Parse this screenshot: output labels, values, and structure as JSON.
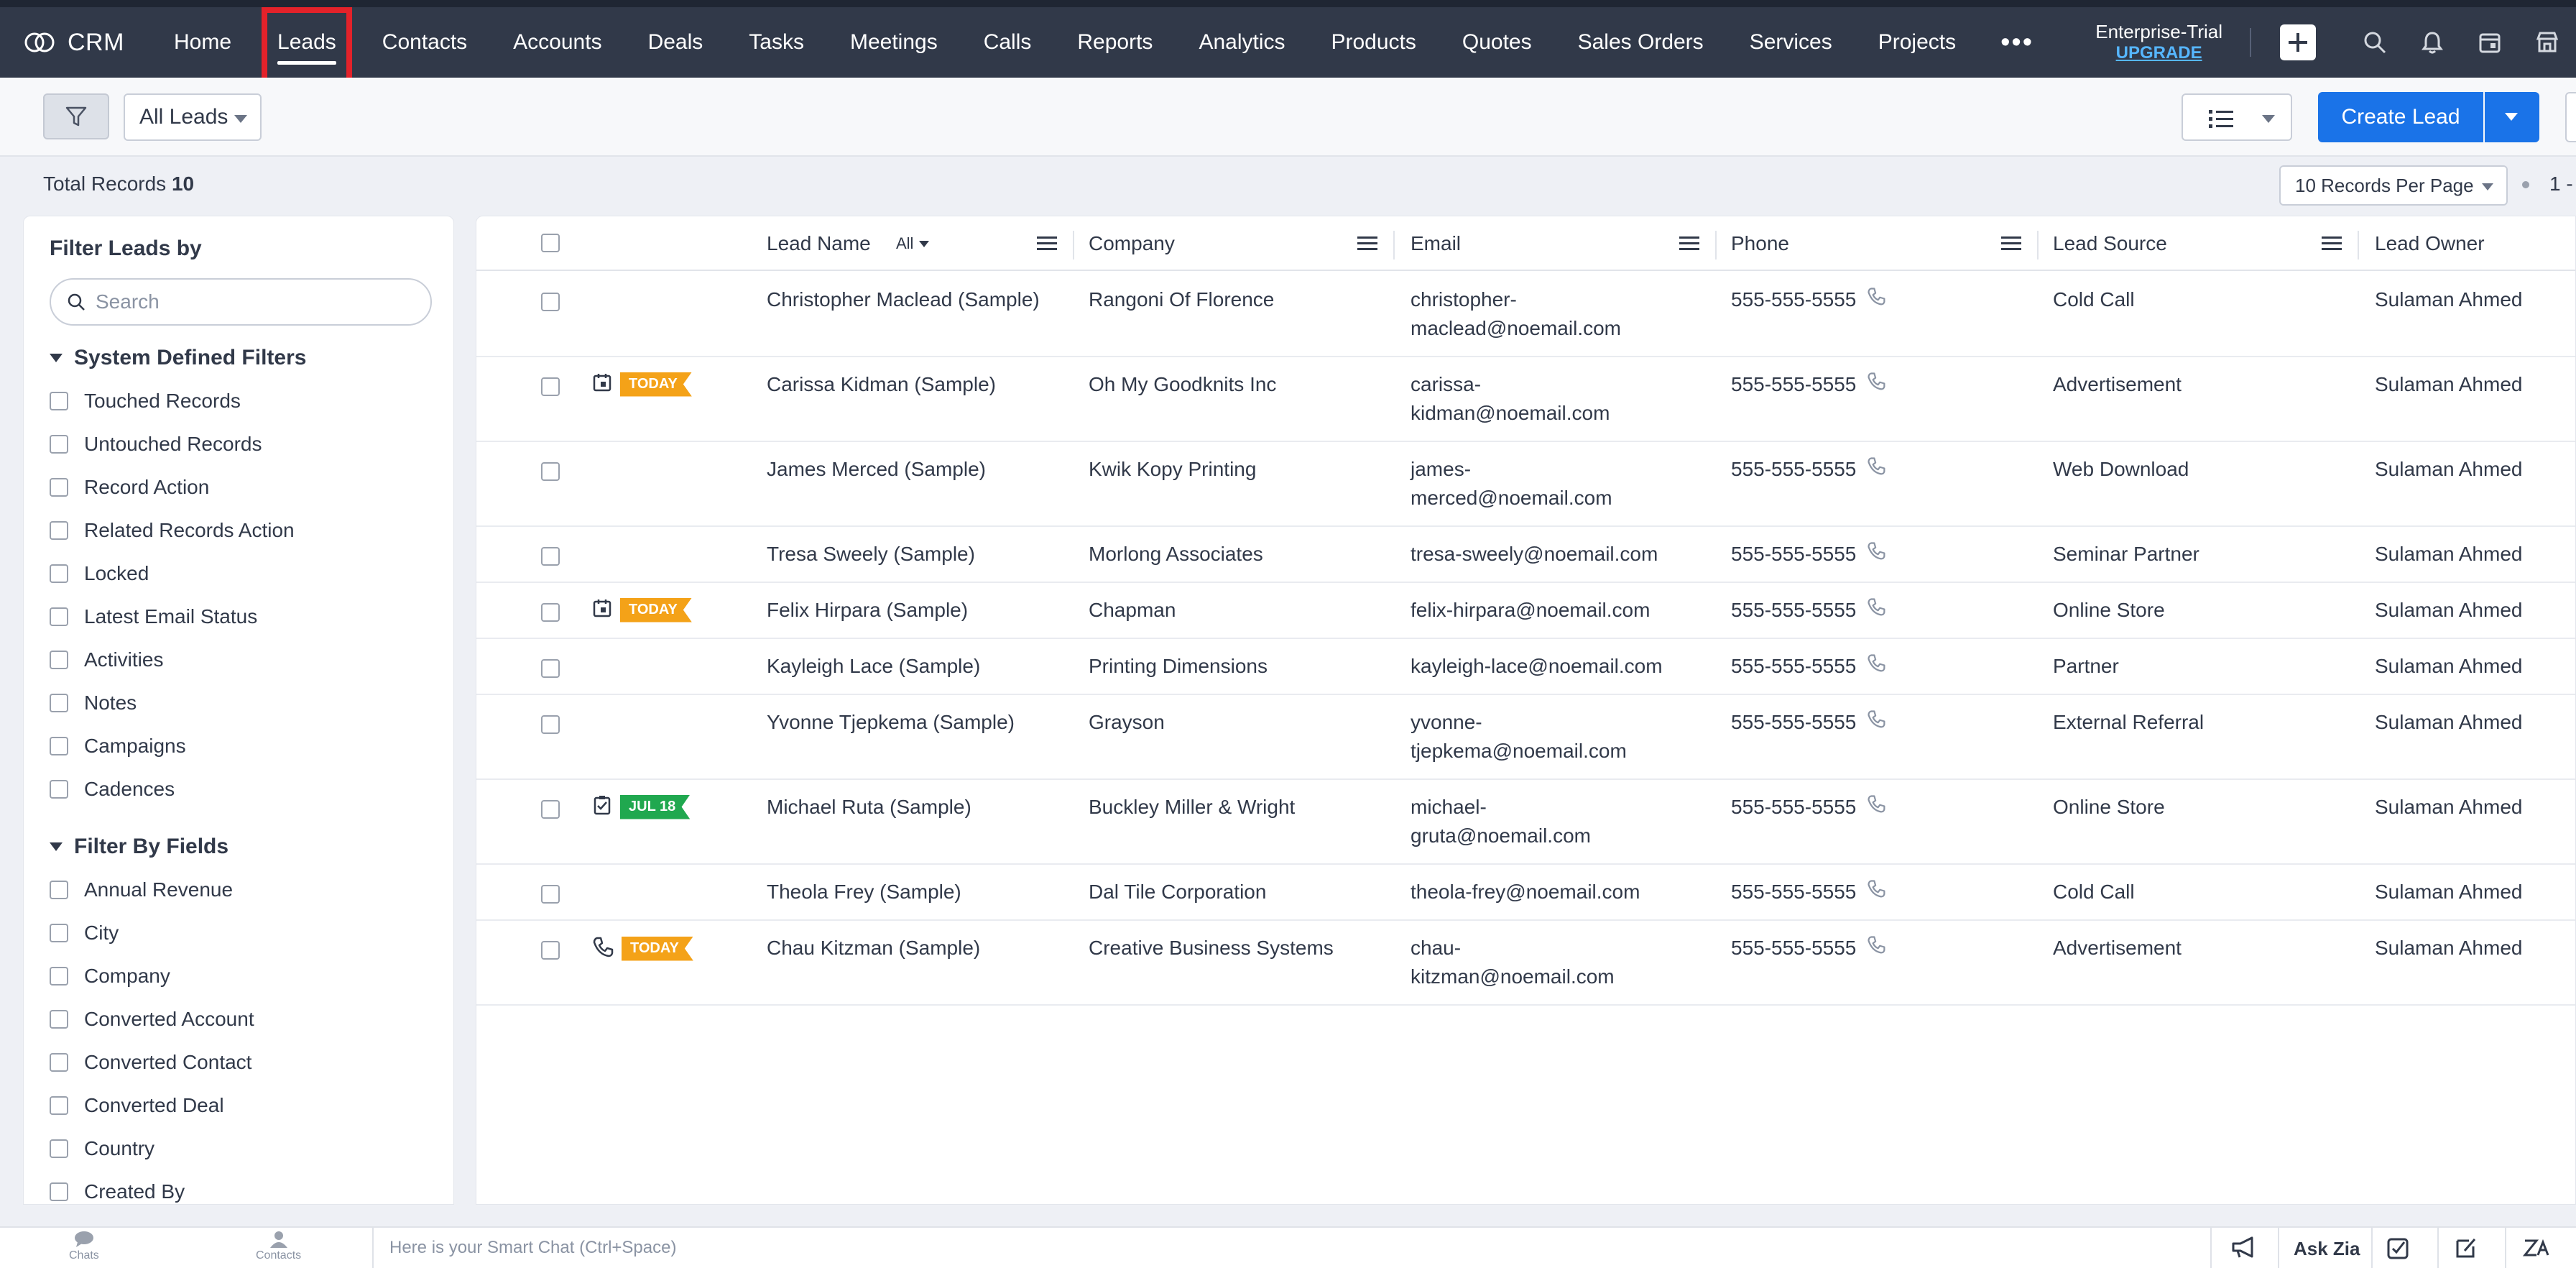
{
  "app": {
    "name": "CRM"
  },
  "nav": {
    "tabs": [
      {
        "label": "Home"
      },
      {
        "label": "Leads"
      },
      {
        "label": "Contacts"
      },
      {
        "label": "Accounts"
      },
      {
        "label": "Deals"
      },
      {
        "label": "Tasks"
      },
      {
        "label": "Meetings"
      },
      {
        "label": "Calls"
      },
      {
        "label": "Reports"
      },
      {
        "label": "Analytics"
      },
      {
        "label": "Products"
      },
      {
        "label": "Quotes"
      },
      {
        "label": "Sales Orders"
      },
      {
        "label": "Services"
      },
      {
        "label": "Projects"
      }
    ],
    "active_tab": "Leads",
    "more": "•••",
    "edition": "Enterprise-Trial",
    "upgrade": "UPGRADE",
    "icons": [
      "plus-icon",
      "search-icon",
      "bell-icon",
      "calendar-icon",
      "marketplace-icon"
    ]
  },
  "toolbar": {
    "view_label": "All Leads",
    "create_label": "Create Lead"
  },
  "records": {
    "label": "Total Records",
    "count": "10",
    "per_page": "10 Records Per Page",
    "pagination": "1 -"
  },
  "sidebar": {
    "title": "Filter Leads by",
    "search_placeholder": "Search",
    "system_title": "System Defined Filters",
    "system_filters": [
      "Touched Records",
      "Untouched Records",
      "Record Action",
      "Related Records Action",
      "Locked",
      "Latest Email Status",
      "Activities",
      "Notes",
      "Campaigns",
      "Cadences"
    ],
    "fields_title": "Filter By Fields",
    "field_filters": [
      "Annual Revenue",
      "City",
      "Company",
      "Converted Account",
      "Converted Contact",
      "Converted Deal",
      "Country",
      "Created By"
    ]
  },
  "table": {
    "columns": {
      "lead_name": "Lead Name",
      "lead_name_filter": "All",
      "company": "Company",
      "email": "Email",
      "phone": "Phone",
      "lead_source": "Lead Source",
      "lead_owner": "Lead Owner"
    },
    "rows": [
      {
        "name": "Christopher Maclead (Sample)",
        "company": "Rangoni Of Florence",
        "email1": "christopher-",
        "email2": "maclead@noemail.com",
        "phone": "555-555-5555",
        "source": "Cold Call",
        "owner": "Sulaman Ahmed",
        "activity": "",
        "tag": ""
      },
      {
        "name": "Carissa Kidman (Sample)",
        "company": "Oh My Goodknits Inc",
        "email1": "carissa-",
        "email2": "kidman@noemail.com",
        "phone": "555-555-5555",
        "source": "Advertisement",
        "owner": "Sulaman Ahmed",
        "activity": "calendar-icon",
        "tag": "TODAY"
      },
      {
        "name": "James Merced (Sample)",
        "company": "Kwik Kopy Printing",
        "email1": "james-",
        "email2": "merced@noemail.com",
        "phone": "555-555-5555",
        "source": "Web Download",
        "owner": "Sulaman Ahmed",
        "activity": "",
        "tag": ""
      },
      {
        "name": "Tresa Sweely (Sample)",
        "company": "Morlong Associates",
        "email1": "tresa-sweely@noemail.com",
        "email2": "",
        "phone": "555-555-5555",
        "source": "Seminar Partner",
        "owner": "Sulaman Ahmed",
        "activity": "",
        "tag": ""
      },
      {
        "name": "Felix Hirpara (Sample)",
        "company": "Chapman",
        "email1": "felix-hirpara@noemail.com",
        "email2": "",
        "phone": "555-555-5555",
        "source": "Online Store",
        "owner": "Sulaman Ahmed",
        "activity": "calendar-icon",
        "tag": "TODAY"
      },
      {
        "name": "Kayleigh Lace (Sample)",
        "company": "Printing Dimensions",
        "email1": "kayleigh-lace@noemail.com",
        "email2": "",
        "phone": "555-555-5555",
        "source": "Partner",
        "owner": "Sulaman Ahmed",
        "activity": "",
        "tag": ""
      },
      {
        "name": "Yvonne Tjepkema (Sample)",
        "company": "Grayson",
        "email1": "yvonne-",
        "email2": "tjepkema@noemail.com",
        "phone": "555-555-5555",
        "source": "External Referral",
        "owner": "Sulaman Ahmed",
        "activity": "",
        "tag": ""
      },
      {
        "name": "Michael Ruta (Sample)",
        "company": "Buckley Miller & Wright",
        "email1": "michael-",
        "email2": "gruta@noemail.com",
        "phone": "555-555-5555",
        "source": "Online Store",
        "owner": "Sulaman Ahmed",
        "activity": "task-icon",
        "tag": "JUL 18"
      },
      {
        "name": "Theola Frey (Sample)",
        "company": "Dal Tile Corporation",
        "email1": "theola-frey@noemail.com",
        "email2": "",
        "phone": "555-555-5555",
        "source": "Cold Call",
        "owner": "Sulaman Ahmed",
        "activity": "",
        "tag": ""
      },
      {
        "name": "Chau Kitzman (Sample)",
        "company": "Creative Business Systems",
        "email1": "chau-",
        "email2": "kitzman@noemail.com",
        "phone": "555-555-5555",
        "source": "Advertisement",
        "owner": "Sulaman Ahmed",
        "activity": "call-icon",
        "tag": "TODAY"
      }
    ]
  },
  "bottombar": {
    "chats": "Chats",
    "contacts": "Contacts",
    "smartchat_placeholder": "Here is your Smart Chat (Ctrl+Space)",
    "ask_zia": "Ask Zia"
  },
  "colors": {
    "nav_bg": "#313949",
    "primary": "#1a73e8",
    "today_tag": "#f4a218",
    "date_tag": "#20a84f",
    "highlight": "#e3222a"
  }
}
